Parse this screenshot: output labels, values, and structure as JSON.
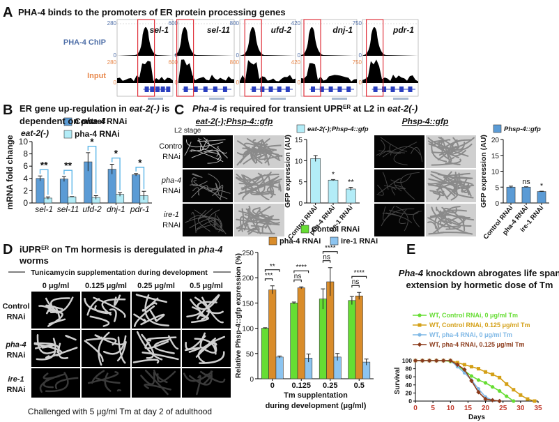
{
  "figure": {
    "A": {
      "label": "A",
      "title": "PHA-4 binds to the promoters of ER protein processing genes",
      "chip_label": "PHA-4 ChIP",
      "input_label": "Input",
      "tracks": [
        {
          "gene": "sel-1",
          "chip_scale": [
            280,
            0
          ],
          "input_scale": [
            280,
            0
          ]
        },
        {
          "gene": "sel-11",
          "chip_scale": [
            600,
            0
          ],
          "input_scale": [
            600,
            0
          ]
        },
        {
          "gene": "ufd-2",
          "chip_scale": [
            800,
            0
          ],
          "input_scale": [
            800,
            0
          ]
        },
        {
          "gene": "dnj-1",
          "chip_scale": [
            420,
            0
          ],
          "input_scale": [
            420,
            0
          ]
        },
        {
          "gene": "pdr-1",
          "chip_scale": [
            750,
            0
          ],
          "input_scale": [
            750,
            0
          ]
        }
      ]
    },
    "B": {
      "label": "B"
    },
    "C": {
      "label": "C",
      "title": [
        "Pha-4",
        " is required for transient UPR",
        "ER",
        " at L2 in ",
        "eat-2(-)"
      ],
      "stage": "L2 stage",
      "grids": [
        {
          "header": "eat-2(-);Phsp-4::gfp",
          "rows": [
            [
              "Control",
              "RNAi"
            ],
            [
              "pha-4",
              "RNAi"
            ],
            [
              "ire-1",
              "RNAi"
            ]
          ]
        },
        {
          "header": "Phsp-4::gfp"
        }
      ]
    },
    "D": {
      "label": "D",
      "title": [
        "iUPR",
        "ER",
        " on Tm hormesis is deregulated in ",
        "pha-4"
      ],
      "title_line2": "worms",
      "header": "Tunicamycin supplementation during development",
      "columns": [
        "0 μg/ml",
        "0.125 μg/ml",
        "0.25 μg/ml",
        "0.5 μg/ml"
      ],
      "rows": [
        [
          "Control",
          "RNAi"
        ],
        [
          "pha-4",
          "RNAi"
        ],
        [
          "ire-1",
          "RNAi"
        ]
      ],
      "caption": "Challenged with 5 μg/ml Tm at day 2 of adulthood"
    },
    "E": {
      "label": "E"
    }
  },
  "chart_data": [
    {
      "type": "bar",
      "title": [
        [
          "ER gene up-regulation in ",
          "eat-2(-)",
          " is"
        ],
        [
          "dependent on ",
          "pha-4"
        ]
      ],
      "subtitle": "eat-2(-)",
      "y_label": "mRNA fold change",
      "categories": [
        "sel-1",
        "sel-11",
        "ufd-2",
        "dnj-1",
        "pdr-1"
      ],
      "series": [
        {
          "name": "Control RNAi",
          "color": "#5b9bd5",
          "values": [
            4.0,
            3.9,
            6.7,
            5.5,
            4.6
          ],
          "errors": [
            0.4,
            0.4,
            1.5,
            0.8,
            0.2
          ]
        },
        {
          "name": "pha-4 RNAi",
          "color": "#b3ecf7",
          "values": [
            0.8,
            1.0,
            0.9,
            1.4,
            1.2
          ],
          "errors": [
            0.2,
            0.05,
            0.3,
            0.3,
            0.7
          ]
        }
      ],
      "annotations": [
        "**",
        "**",
        "*",
        "*",
        "*"
      ],
      "ylim": [
        0,
        10
      ],
      "yticks": [
        0,
        2,
        4,
        6,
        8,
        10
      ]
    },
    {
      "type": "bar",
      "y_label": "GFP expression (AU)",
      "categories": [
        "Control RNAi",
        "pha-4 RNAi",
        "ire-1 RNAi"
      ],
      "series": [
        {
          "name": "eat-2(-);Phsp-4::gfp",
          "color": "#b3ecf7",
          "values": [
            10.5,
            5.4,
            3.3
          ],
          "errors": [
            0.7,
            0.15,
            0.4
          ]
        }
      ],
      "annotations": [
        null,
        "*",
        "**"
      ],
      "ylim": [
        0,
        15
      ],
      "yticks": [
        0,
        5,
        10,
        15
      ]
    },
    {
      "type": "bar",
      "y_label": "GFP expression (AU)",
      "categories": [
        "Control RNAi",
        "pha-4 RNAi",
        "ire-1 RNAi"
      ],
      "series": [
        {
          "name": "Phsp-4::gfp",
          "color": "#5b9bd5",
          "values": [
            5.0,
            5.0,
            3.6
          ],
          "errors": [
            0.3,
            0.1,
            0.1
          ]
        }
      ],
      "annotations": [
        null,
        "ns",
        "*"
      ],
      "ylim": [
        0,
        20
      ],
      "yticks": [
        0,
        5,
        10,
        15,
        20
      ]
    },
    {
      "type": "bar",
      "y_label": "Relative Phsp-4::gfp expression (%)",
      "x_label": [
        "Tm supplentation",
        "during development (μg/ml)"
      ],
      "categories": [
        "0",
        "0.125",
        "0.25",
        "0.5"
      ],
      "series": [
        {
          "name": "Control RNAi",
          "color": "#66dd33",
          "values": [
            100,
            150,
            158,
            155
          ],
          "errors": [
            1,
            2,
            20,
            8
          ]
        },
        {
          "name": "pha-4 RNAi",
          "color": "#d98c2a",
          "values": [
            176,
            180,
            192,
            164
          ],
          "errors": [
            8,
            2,
            28,
            7
          ]
        },
        {
          "name": "ire-1 RNAi",
          "color": "#8cc4f0",
          "values": [
            43,
            41,
            43,
            33
          ],
          "errors": [
            2,
            8,
            7,
            6
          ]
        }
      ],
      "annotations_top": [
        "**",
        "****",
        "****",
        "****"
      ],
      "annotations_bottom": [
        "***",
        "ns",
        "ns",
        "ns"
      ],
      "ylim": [
        0,
        250
      ],
      "yticks": [
        0,
        50,
        100,
        150,
        200,
        250
      ]
    },
    {
      "type": "line",
      "title": [
        [
          "Pha-4",
          " knockdown abrogates life span"
        ],
        [
          "extension by hormetic dose of Tm"
        ]
      ],
      "x_label": "Days",
      "y_label": "Survival",
      "series": [
        {
          "name": "WT, Control RNAi, 0 μg/ml Tm",
          "color": "#66dd33",
          "marker": "circle",
          "x": [
            0,
            2,
            4,
            6,
            8,
            10,
            12,
            14,
            16,
            18,
            20,
            22,
            24,
            26,
            28
          ],
          "values": [
            100,
            100,
            100,
            100,
            100,
            98,
            88,
            75,
            62,
            52,
            45,
            35,
            25,
            12,
            0
          ]
        },
        {
          "name": "WT, Control RNAi, 0.125 μg/ml Tm",
          "color": "#d4a017",
          "marker": "square",
          "x": [
            0,
            2,
            4,
            6,
            8,
            10,
            12,
            14,
            16,
            18,
            20,
            22,
            24,
            26,
            28,
            30,
            32,
            34
          ],
          "values": [
            100,
            100,
            100,
            100,
            100,
            100,
            95,
            90,
            85,
            80,
            72,
            66,
            58,
            42,
            28,
            15,
            5,
            0
          ]
        },
        {
          "name": "WT, pha-4 RNAi, 0 μg/ml Tm",
          "color": "#7fb8e6",
          "marker": "circle",
          "x": [
            0,
            2,
            4,
            6,
            8,
            10,
            12,
            14,
            16,
            18,
            20,
            22,
            24
          ],
          "values": [
            100,
            100,
            100,
            100,
            100,
            100,
            85,
            70,
            52,
            30,
            10,
            2,
            0
          ]
        },
        {
          "name": "WT, pha-4 RNAi, 0.125 μg/ml Tm",
          "color": "#8b3a1a",
          "marker": "diamond",
          "x": [
            0,
            2,
            4,
            6,
            8,
            10,
            12,
            14,
            16,
            18,
            20,
            22,
            24
          ],
          "values": [
            100,
            100,
            100,
            100,
            100,
            100,
            90,
            78,
            50,
            22,
            5,
            2,
            0
          ]
        }
      ],
      "xlim": [
        0,
        35
      ],
      "xticks": [
        0,
        5,
        10,
        15,
        20,
        25,
        30,
        35
      ],
      "ylim": [
        0,
        100
      ],
      "yticks": [
        0,
        20,
        40,
        60,
        80,
        100
      ]
    }
  ]
}
